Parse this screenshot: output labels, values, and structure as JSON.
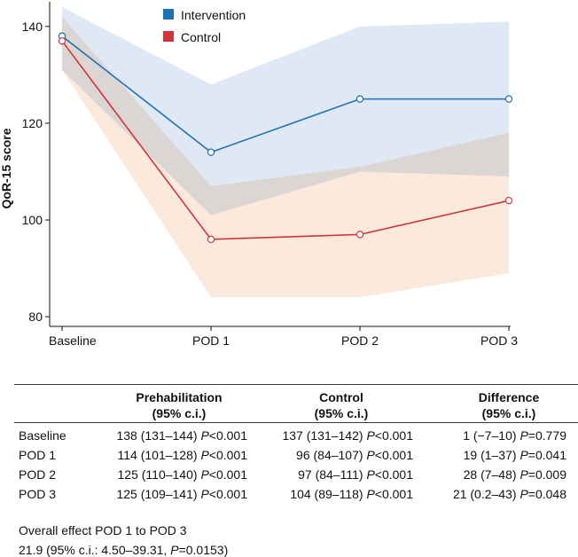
{
  "chart_data": {
    "type": "line",
    "ylabel": "QoR-15 score",
    "xlabel": "",
    "categories": [
      "Baseline",
      "POD 1",
      "POD 2",
      "POD 3"
    ],
    "ylim": [
      78,
      144
    ],
    "yticks": [
      80,
      100,
      120,
      140
    ],
    "legend_position": "top-center",
    "series": [
      {
        "name": "Intervention",
        "color": "#1f6fb5",
        "fill": "#dfe9f6",
        "values": [
          138,
          114,
          125,
          125
        ],
        "lower": [
          131,
          101,
          110,
          109
        ],
        "upper": [
          144,
          128,
          140,
          141
        ]
      },
      {
        "name": "Control",
        "color": "#d0343c",
        "fill": "#fbe9dc",
        "values": [
          137,
          96,
          97,
          104
        ],
        "lower": [
          131,
          84,
          84,
          89
        ],
        "upper": [
          142,
          107,
          111,
          118
        ]
      }
    ]
  },
  "table": {
    "headers": [
      [
        "",
        ""
      ],
      [
        "Prehabilitation",
        "(95% c.i.)"
      ],
      [
        "Control",
        "(95% c.i.)"
      ],
      [
        "Difference",
        "(95% c.i.)"
      ]
    ],
    "rows": [
      {
        "label": "Baseline",
        "pre": "138 (131–144)",
        "pre_p": "<0.001",
        "ctl": "137 (131–142)",
        "ctl_p": "<0.001",
        "diff": "1 (−7–10)",
        "diff_p": "=0.779"
      },
      {
        "label": "POD 1",
        "pre": "114 (101–128)",
        "pre_p": "<0.001",
        "ctl": "96 (84–107)",
        "ctl_p": "<0.001",
        "diff": "19 (1–37)",
        "diff_p": "=0.041"
      },
      {
        "label": "POD 2",
        "pre": "125 (110–140)",
        "pre_p": "<0.001",
        "ctl": "97 (84–111)",
        "ctl_p": "<0.001",
        "diff": "28 (7–48)",
        "diff_p": "=0.009"
      },
      {
        "label": "POD 3",
        "pre": "125 (109–141)",
        "pre_p": "<0.001",
        "ctl": "104 (89–118)",
        "ctl_p": "<0.001",
        "diff": "21 (0.2–43)",
        "diff_p": "=0.048"
      }
    ],
    "p_label": "P"
  },
  "footer": {
    "line1": "Overall effect POD 1 to POD 3",
    "line2_prefix": "21.9 (95% c.i.: 4.50–39.31, ",
    "p_label": "P",
    "line2_p": "=0.0153",
    "line2_suffix": ")"
  }
}
